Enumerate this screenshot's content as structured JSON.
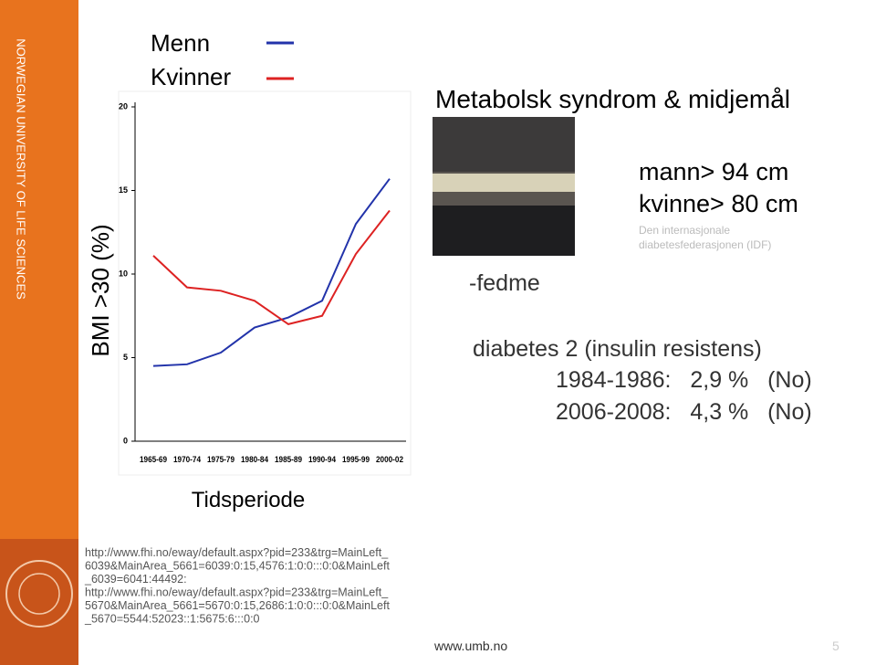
{
  "sidebar": {
    "institution": "NORWEGIAN UNIVERSITY OF LIFE SCIENCES"
  },
  "chart_data": {
    "type": "line",
    "y_label": "BMI >30 (%)",
    "x_label": "Tidsperiode",
    "categories": [
      "1965-69",
      "1970-74",
      "1975-79",
      "1980-84",
      "1985-89",
      "1990-94",
      "1995-99",
      "2000-02"
    ],
    "series": [
      {
        "name": "Menn",
        "color": "#2233aa",
        "values": [
          4.5,
          4.6,
          5.3,
          6.8,
          7.4,
          8.4,
          13.0,
          15.7
        ]
      },
      {
        "name": "Kvinner",
        "color": "#dd2222",
        "values": [
          11.1,
          9.2,
          9.0,
          8.4,
          7.0,
          7.5,
          11.2,
          13.8
        ]
      }
    ],
    "ylim": [
      0,
      20
    ],
    "yticks": [
      0,
      5,
      10,
      15,
      20
    ]
  },
  "title": "Metabolsk syndrom & midjemål",
  "waist": {
    "men": "mann> 94 cm",
    "women": "kvinne> 80 cm",
    "source": [
      "Den internasjonale",
      "diabetesfederasjonen (IDF)"
    ]
  },
  "obesity": "-fedme",
  "diabetes": {
    "heading": "diabetes 2 (insulin resistens)",
    "rows": [
      "1984-1986:   2,9 %   (No)",
      "2006-2008:   4,3 %   (No)"
    ]
  },
  "references": [
    "http://www.fhi.no/eway/default.aspx?pid=233&trg=MainLeft_",
    "6039&MainArea_5661=6039:0:15,4576:1:0:0:::0:0&MainLeft",
    "_6039=6041:44492:",
    "http://www.fhi.no/eway/default.aspx?pid=233&trg=MainLeft_",
    "5670&MainArea_5661=5670:0:15,2686:1:0:0:::0:0&MainLeft",
    "_5670=5544:52023::1:5675:6:::0:0"
  ],
  "footer": {
    "url": "www.umb.no",
    "page": "5"
  }
}
